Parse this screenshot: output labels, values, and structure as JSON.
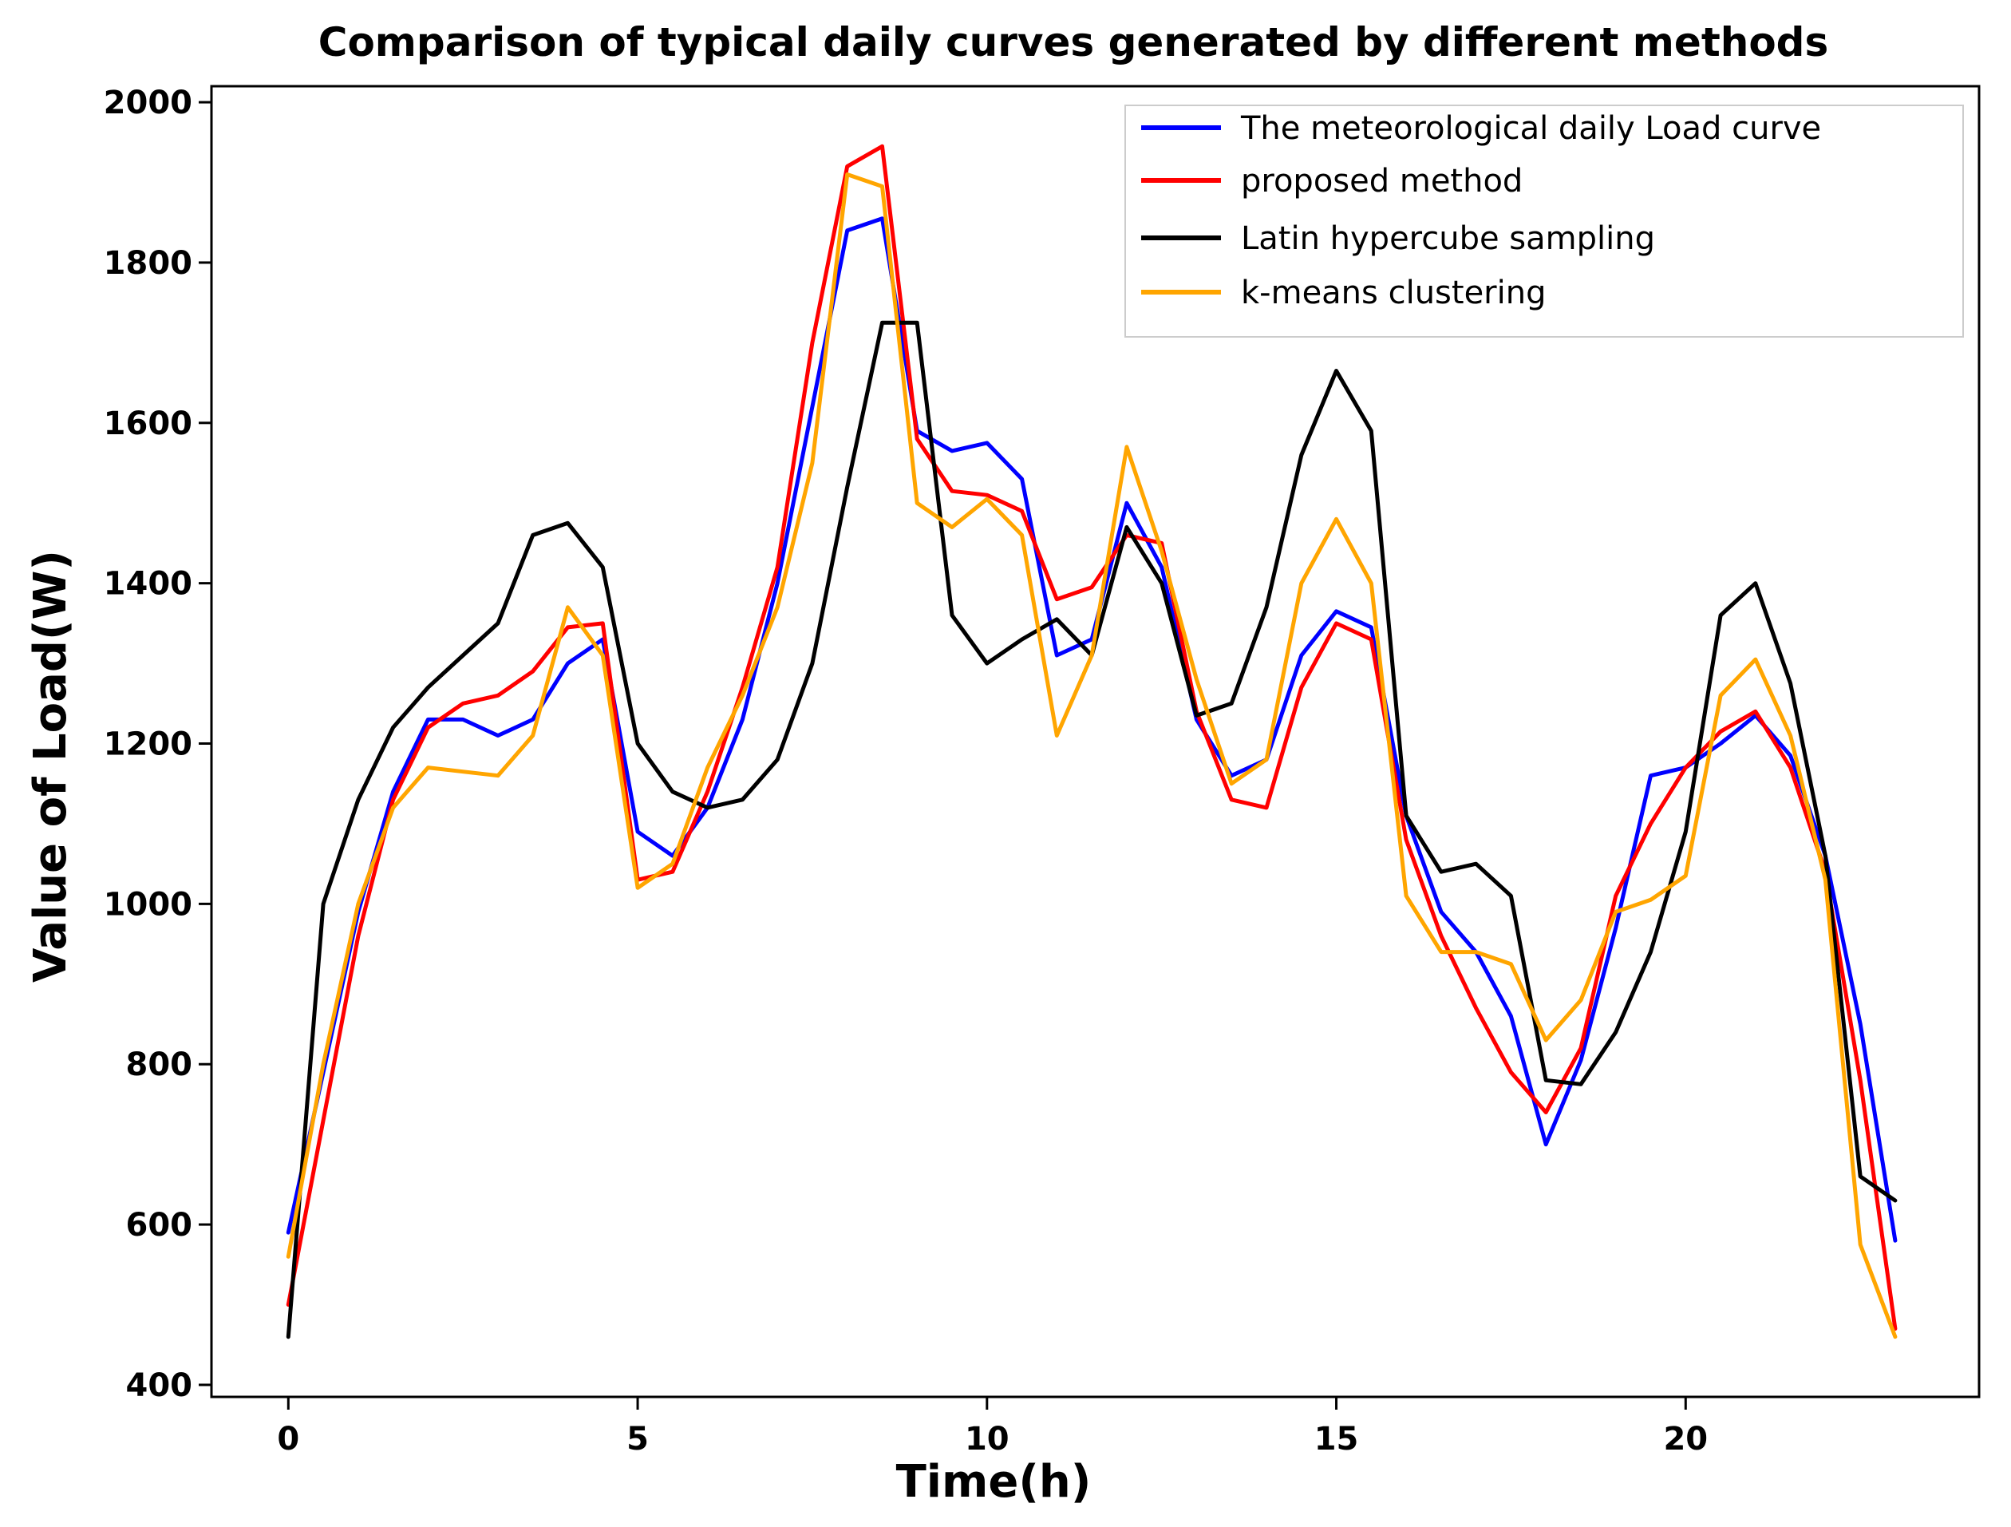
{
  "chart_data": {
    "type": "line",
    "title": "Comparison of typical daily curves generated by different methods",
    "xlabel": "Time(h)",
    "ylabel": "Value of Load(W)",
    "xlim": [
      -1.1,
      24.2
    ],
    "ylim": [
      385,
      2020
    ],
    "xticks": [
      0,
      5,
      10,
      15,
      20
    ],
    "yticks": [
      400,
      600,
      800,
      1000,
      1200,
      1400,
      1600,
      1800,
      2000
    ],
    "legend_position": "top-right",
    "x": [
      0,
      0.5,
      1,
      1.5,
      2,
      2.5,
      3,
      3.5,
      4,
      4.5,
      5,
      5.5,
      6,
      6.5,
      7,
      7.5,
      8,
      8.5,
      9,
      9.5,
      10,
      10.5,
      11,
      11.5,
      12,
      12.5,
      13,
      13.5,
      14,
      14.5,
      15,
      15.5,
      16,
      16.5,
      17,
      17.5,
      18,
      18.5,
      19,
      19.5,
      20,
      20.5,
      21,
      21.5,
      22,
      22.5,
      23
    ],
    "series": [
      {
        "name": "The meteorological daily Load curve",
        "color": "#0000ff",
        "values": [
          590,
          790,
          990,
          1140,
          1230,
          1230,
          1210,
          1230,
          1300,
          1330,
          1090,
          1060,
          1120,
          1230,
          1400,
          1620,
          1840,
          1855,
          1590,
          1565,
          1575,
          1530,
          1310,
          1330,
          1500,
          1420,
          1230,
          1160,
          1180,
          1310,
          1365,
          1345,
          1110,
          990,
          940,
          860,
          700,
          805,
          970,
          1160,
          1170,
          1200,
          1235,
          1185,
          1060,
          850,
          580
        ]
      },
      {
        "name": "proposed method",
        "color": "#ff0000",
        "values": [
          500,
          730,
          960,
          1130,
          1220,
          1250,
          1260,
          1290,
          1345,
          1350,
          1030,
          1040,
          1140,
          1270,
          1420,
          1700,
          1920,
          1945,
          1580,
          1515,
          1510,
          1490,
          1380,
          1395,
          1460,
          1450,
          1240,
          1130,
          1120,
          1270,
          1350,
          1330,
          1080,
          960,
          870,
          790,
          740,
          820,
          1010,
          1100,
          1170,
          1215,
          1240,
          1170,
          1040,
          780,
          470
        ]
      },
      {
        "name": "Latin hypercube sampling",
        "color": "#000000",
        "values": [
          460,
          1000,
          1130,
          1220,
          1270,
          1310,
          1350,
          1460,
          1475,
          1420,
          1200,
          1140,
          1120,
          1130,
          1180,
          1300,
          1520,
          1725,
          1725,
          1360,
          1300,
          1330,
          1355,
          1310,
          1470,
          1400,
          1235,
          1250,
          1370,
          1560,
          1665,
          1590,
          1110,
          1040,
          1050,
          1010,
          780,
          775,
          840,
          940,
          1090,
          1360,
          1400,
          1275,
          1060,
          660,
          630
        ]
      },
      {
        "name": "k-means clustering",
        "color": "#ffa500",
        "values": [
          560,
          800,
          1000,
          1120,
          1170,
          1165,
          1160,
          1210,
          1370,
          1310,
          1020,
          1050,
          1170,
          1260,
          1370,
          1550,
          1910,
          1895,
          1500,
          1470,
          1505,
          1460,
          1210,
          1310,
          1570,
          1440,
          1280,
          1150,
          1180,
          1400,
          1480,
          1400,
          1010,
          940,
          940,
          925,
          830,
          880,
          990,
          1005,
          1035,
          1260,
          1305,
          1210,
          1030,
          575,
          460
        ]
      }
    ]
  }
}
